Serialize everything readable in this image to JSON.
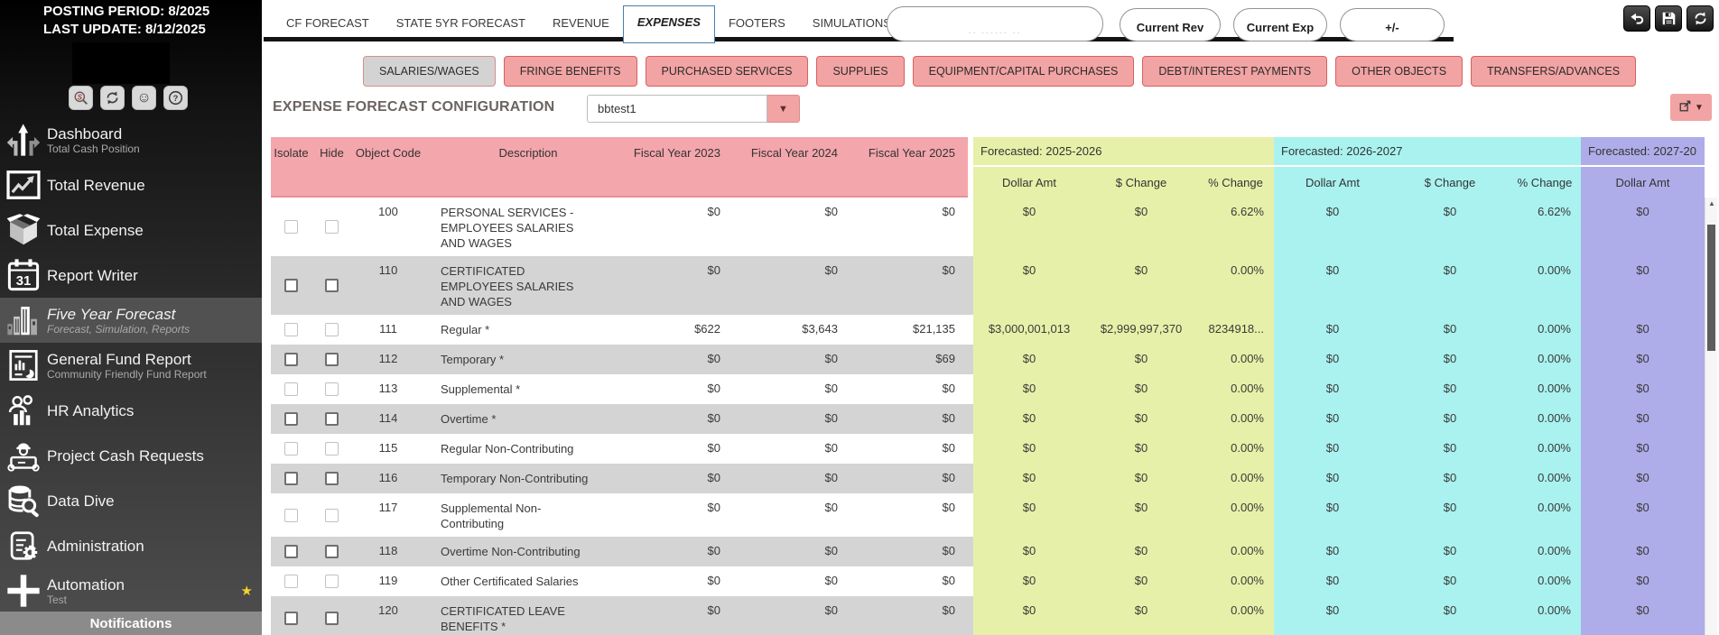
{
  "colors": {
    "pink_header": "#f3a6ab",
    "salmon_button": "#f2a3a3",
    "red_border": "#dc5f5f",
    "green_section": "#e7f0a8",
    "cyan_section": "#a9f2ef",
    "purple_section": "#afade9",
    "gray_row": "#d4d4d4",
    "active_tab_border": "#4a7fb0",
    "star_yellow": "#f5d327"
  },
  "sidebar": {
    "posting_period": "POSTING PERIOD: 8/2025",
    "last_update": "LAST UPDATE: 8/12/2025",
    "toolbar_icons": [
      "s-search-icon",
      "refresh-icon",
      "smiley-icon",
      "help-icon"
    ],
    "items": [
      {
        "label": "Dashboard",
        "sublabel": "Total Cash Position",
        "icon": "road-arrows-icon"
      },
      {
        "label": "Total Revenue",
        "sublabel": "",
        "icon": "line-chart-icon"
      },
      {
        "label": "Total Expense",
        "sublabel": "",
        "icon": "open-box-icon"
      },
      {
        "label": "Report Writer",
        "sublabel": "",
        "icon": "calendar-31-icon"
      },
      {
        "label": "Five Year Forecast",
        "sublabel": "Forecast, Simulation, Reports",
        "icon": "buildings-icon",
        "active": true
      },
      {
        "label": "General Fund Report",
        "sublabel": "Community Friendly Fund Report",
        "icon": "report-doc-icon"
      },
      {
        "label": "HR Analytics",
        "sublabel": "",
        "icon": "people-chart-icon"
      },
      {
        "label": "Project Cash Requests",
        "sublabel": "",
        "icon": "engineer-icon"
      },
      {
        "label": "Data Dive",
        "sublabel": "",
        "icon": "database-search-icon"
      },
      {
        "label": "Administration",
        "sublabel": "",
        "icon": "clipboard-gear-icon"
      },
      {
        "label": "Automation",
        "sublabel": "Test",
        "icon": "plus-icon",
        "starred": true
      }
    ],
    "notifications_label": "Notifications"
  },
  "tabs": {
    "items": [
      "CF FORECAST",
      "STATE 5YR FORECAST",
      "REVENUE",
      "EXPENSES",
      "FOOTERS",
      "SIMULATIONS"
    ],
    "active": "EXPENSES"
  },
  "top_actions": {
    "legend_placeholder": "-- ------ --",
    "current_rev": "Current Rev",
    "current_exp": "Current Exp",
    "plus_minus": "+/-",
    "icon_buttons": [
      "undo-icon",
      "save-icon",
      "refresh-icon"
    ]
  },
  "subtabs": {
    "items": [
      "SALARIES/WAGES",
      "FRINGE BENEFITS",
      "PURCHASED SERVICES",
      "SUPPLIES",
      "EQUIPMENT/CAPITAL PURCHASES",
      "DEBT/INTEREST PAYMENTS",
      "OTHER OBJECTS",
      "TRANSFERS/ADVANCES"
    ],
    "active": "SALARIES/WAGES"
  },
  "config": {
    "title": "EXPENSE FORECAST CONFIGURATION",
    "dropdown_value": "bbtest1"
  },
  "table": {
    "columns": [
      "Isolate",
      "Hide",
      "Object Code",
      "Description",
      "Fiscal Year 2023",
      "Fiscal Year 2024",
      "Fiscal Year 2025"
    ],
    "forecast_groups": [
      {
        "label": "Forecasted: 2025-2026",
        "cols": [
          "Dollar Amt",
          "$ Change",
          "% Change"
        ]
      },
      {
        "label": "Forecasted: 2026-2027",
        "cols": [
          "Dollar Amt",
          "$ Change",
          "% Change"
        ]
      },
      {
        "label": "Forecasted: 2027-20",
        "cols": [
          "Dollar Amt"
        ]
      }
    ],
    "rows": [
      {
        "code": "100",
        "desc": "PERSONAL SERVICES - EMPLOYEES SALARIES AND WAGES",
        "fy": [
          "$0",
          "$0",
          "$0"
        ],
        "f1": [
          "$0",
          "$0",
          "6.62%"
        ],
        "f2": [
          "$0",
          "$0",
          "6.62%"
        ],
        "f3": "$0"
      },
      {
        "code": "110",
        "desc": "CERTIFICATED EMPLOYEES SALARIES AND WAGES",
        "fy": [
          "$0",
          "$0",
          "$0"
        ],
        "f1": [
          "$0",
          "$0",
          "0.00%"
        ],
        "f2": [
          "$0",
          "$0",
          "0.00%"
        ],
        "f3": "$0"
      },
      {
        "code": "111",
        "desc": "Regular *",
        "fy": [
          "$622",
          "$3,643",
          "$21,135"
        ],
        "f1": [
          "$3,000,001,013",
          "$2,999,997,370",
          "8234918..."
        ],
        "f2": [
          "$0",
          "$0",
          "0.00%"
        ],
        "f3": "$0"
      },
      {
        "code": "112",
        "desc": "Temporary *",
        "fy": [
          "$0",
          "$0",
          "$69"
        ],
        "f1": [
          "$0",
          "$0",
          "0.00%"
        ],
        "f2": [
          "$0",
          "$0",
          "0.00%"
        ],
        "f3": "$0"
      },
      {
        "code": "113",
        "desc": "Supplemental *",
        "fy": [
          "$0",
          "$0",
          "$0"
        ],
        "f1": [
          "$0",
          "$0",
          "0.00%"
        ],
        "f2": [
          "$0",
          "$0",
          "0.00%"
        ],
        "f3": "$0"
      },
      {
        "code": "114",
        "desc": "Overtime *",
        "fy": [
          "$0",
          "$0",
          "$0"
        ],
        "f1": [
          "$0",
          "$0",
          "0.00%"
        ],
        "f2": [
          "$0",
          "$0",
          "0.00%"
        ],
        "f3": "$0"
      },
      {
        "code": "115",
        "desc": "Regular Non-Contributing",
        "fy": [
          "$0",
          "$0",
          "$0"
        ],
        "f1": [
          "$0",
          "$0",
          "0.00%"
        ],
        "f2": [
          "$0",
          "$0",
          "0.00%"
        ],
        "f3": "$0"
      },
      {
        "code": "116",
        "desc": "Temporary Non-Contributing",
        "fy": [
          "$0",
          "$0",
          "$0"
        ],
        "f1": [
          "$0",
          "$0",
          "0.00%"
        ],
        "f2": [
          "$0",
          "$0",
          "0.00%"
        ],
        "f3": "$0"
      },
      {
        "code": "117",
        "desc": "Supplemental Non-Contributing",
        "fy": [
          "$0",
          "$0",
          "$0"
        ],
        "f1": [
          "$0",
          "$0",
          "0.00%"
        ],
        "f2": [
          "$0",
          "$0",
          "0.00%"
        ],
        "f3": "$0"
      },
      {
        "code": "118",
        "desc": "Overtime Non-Contributing",
        "fy": [
          "$0",
          "$0",
          "$0"
        ],
        "f1": [
          "$0",
          "$0",
          "0.00%"
        ],
        "f2": [
          "$0",
          "$0",
          "0.00%"
        ],
        "f3": "$0"
      },
      {
        "code": "119",
        "desc": "Other Certificated Salaries",
        "fy": [
          "$0",
          "$0",
          "$0"
        ],
        "f1": [
          "$0",
          "$0",
          "0.00%"
        ],
        "f2": [
          "$0",
          "$0",
          "0.00%"
        ],
        "f3": "$0"
      },
      {
        "code": "120",
        "desc": "CERTIFICATED LEAVE BENEFITS *",
        "fy": [
          "$0",
          "$0",
          "$0"
        ],
        "f1": [
          "$0",
          "$0",
          "0.00%"
        ],
        "f2": [
          "$0",
          "$0",
          "0.00%"
        ],
        "f3": "$0"
      }
    ]
  },
  "scrollbar": {
    "up_arrow": "▲"
  }
}
